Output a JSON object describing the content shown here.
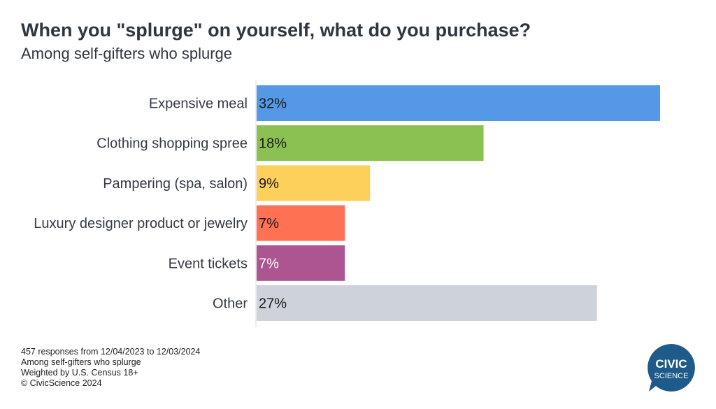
{
  "title": "When you \"splurge\" on yourself, what do you purchase?",
  "subtitle": "Among self-gifters who splurge",
  "chart_data": {
    "type": "bar",
    "orientation": "horizontal",
    "categories": [
      "Expensive meal",
      "Clothing shopping spree",
      "Pampering (spa, salon)",
      "Luxury designer product or jewelry",
      "Event tickets",
      "Other"
    ],
    "values": [
      32,
      18,
      9,
      7,
      7,
      27
    ],
    "value_labels": [
      "32%",
      "18%",
      "9%",
      "7%",
      "7%",
      "27%"
    ],
    "colors": [
      "#5599e6",
      "#8bc152",
      "#fdd05c",
      "#fe7153",
      "#ad5590",
      "#ced2da"
    ],
    "label_colors": [
      "#1a1a1a",
      "#1a1a1a",
      "#1a1a1a",
      "#1a1a1a",
      "#ffffff",
      "#1a1a1a"
    ],
    "xlim": [
      0,
      32
    ],
    "unit": "%",
    "grid": false
  },
  "footer": {
    "line1": "457 responses from 12/04/2023 to 12/03/2024",
    "line2": "Among self-gifters who splurge",
    "line3": "Weighted by U.S. Census 18+",
    "line4": "© CivicScience 2024"
  },
  "logo": {
    "line1": "CIVIC",
    "line2": "SCIENCE",
    "color": "#1e5a8a"
  }
}
